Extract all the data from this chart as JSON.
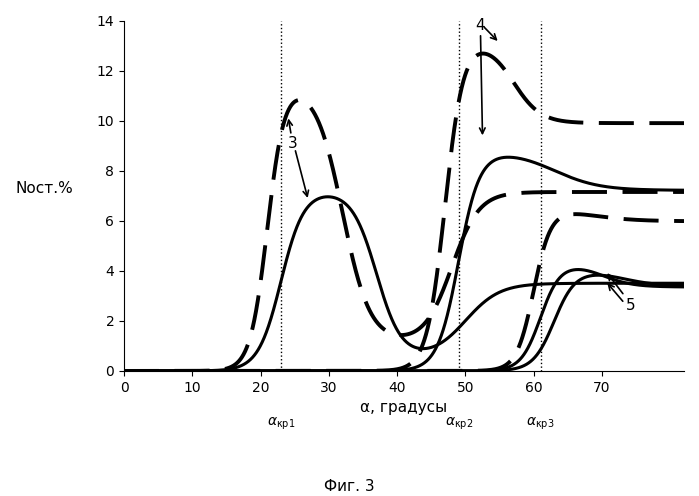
{
  "ylabel": "Nост.%",
  "xlabel": "α, градусы",
  "caption": "Фиг. 3",
  "xmin": 0,
  "xmax": 82,
  "ymin": 0,
  "ymax": 14,
  "yticks": [
    0,
    2,
    4,
    6,
    8,
    10,
    12,
    14
  ],
  "xticks": [
    0,
    10,
    20,
    30,
    40,
    50,
    60,
    70
  ],
  "vlines": [
    23,
    49,
    61
  ],
  "background": "#ffffff",
  "line_color": "#000000",
  "lw_solid": 2.2,
  "lw_dashed": 2.8
}
